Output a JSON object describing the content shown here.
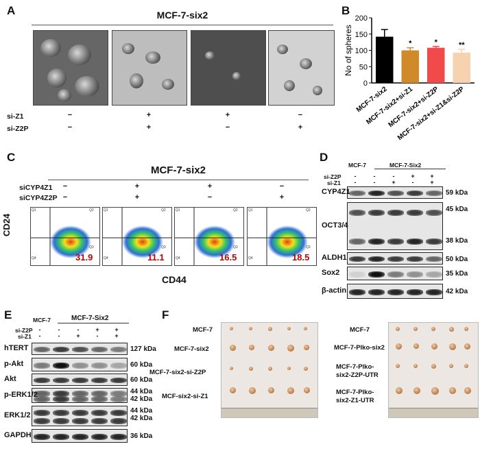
{
  "panelA": {
    "letter": "A",
    "title": "MCF-7-six2",
    "rows": [
      {
        "label": "si-Z1",
        "signs": [
          "−",
          "+",
          "+",
          "−"
        ]
      },
      {
        "label": "si-Z2P",
        "signs": [
          "−",
          "+",
          "−",
          "+"
        ]
      }
    ]
  },
  "panelB": {
    "letter": "B"
  },
  "chart_data": {
    "type": "bar",
    "categories": [
      "MCF-7-six2",
      "MCF-7-six2+si-Z1",
      "MCF-7-six2+si-Z2P",
      "MCF-7-six2+si-Z1&si-Z2P"
    ],
    "values": [
      142,
      100,
      108,
      93
    ],
    "errors": [
      22,
      8,
      4,
      10
    ],
    "significance": [
      "",
      "*",
      "*",
      "**"
    ],
    "colors": [
      "#000000",
      "#d08a2a",
      "#f04a4a",
      "#f7d2b0"
    ],
    "ylabel": "No of spheres",
    "ylim": [
      0,
      200
    ],
    "yticks": [
      0,
      50,
      100,
      150,
      200
    ]
  },
  "panelC": {
    "letter": "C",
    "title": "MCF-7-six2",
    "rows": [
      {
        "label": "siCYP4Z1",
        "signs": [
          "−",
          "+",
          "+",
          "−"
        ]
      },
      {
        "label": "siCYP4Z2P",
        "signs": [
          "−",
          "+",
          "−",
          "+"
        ]
      }
    ],
    "q3_values": [
      "31.9",
      "11.1",
      "16.5",
      "18.5"
    ],
    "xlabel": "CD44",
    "ylabel": "CD24",
    "quad_labels": [
      "Q1",
      "Q2",
      "Q4",
      "Q3"
    ]
  },
  "panelD": {
    "letter": "D",
    "group_left": "MCF-7",
    "group_right": "MCF-7-Six2",
    "rows": [
      {
        "label": "si-Z2P",
        "signs": [
          "-",
          "-",
          "-",
          "+",
          "+"
        ]
      },
      {
        "label": "si-Z1",
        "signs": [
          "-",
          "-",
          "+",
          "-",
          "+"
        ]
      }
    ],
    "blots": [
      {
        "name": "CYP4Z1",
        "kda": [
          "59 kDa"
        ]
      },
      {
        "name": "OCT3/4",
        "kda": [
          "45 kDa",
          "38 kDa"
        ]
      },
      {
        "name": "ALDH1",
        "kda": [
          "50 kDa"
        ]
      },
      {
        "name": "Sox2",
        "kda": [
          "35 kDa"
        ]
      },
      {
        "name": "β-actin",
        "kda": [
          "42 kDa"
        ]
      }
    ]
  },
  "panelE": {
    "letter": "E",
    "group_left": "MCF-7",
    "group_right": "MCF-7-Six2",
    "rows": [
      {
        "label": "si-Z2P",
        "signs": [
          "-",
          "-",
          "-",
          "+",
          "+"
        ]
      },
      {
        "label": "si-Z1",
        "signs": [
          "-",
          "-",
          "+",
          "-",
          "+"
        ]
      }
    ],
    "blots": [
      {
        "name": "hTERT",
        "kda": [
          "127 kDa"
        ]
      },
      {
        "name": "p-Akt",
        "kda": [
          "60 kDa"
        ]
      },
      {
        "name": "Akt",
        "kda": [
          "60 kDa"
        ]
      },
      {
        "name": "p-ERK1/2",
        "kda": [
          "44 kDa",
          "42 kDa"
        ]
      },
      {
        "name": "ERK1/2",
        "kda": [
          "44 kDa",
          "42 kDa"
        ]
      },
      {
        "name": "GAPDH",
        "kda": [
          "36 kDa"
        ]
      }
    ]
  },
  "panelF": {
    "letter": "F",
    "left_labels": [
      "MCF-7",
      "MCF-7-six2",
      "MCF-7-six2-si-Z2P",
      "MCF-six2-si-Z1"
    ],
    "right_labels": [
      "MCF-7",
      "MCF-7-Plko-six2",
      "MCF-7-Plko-\nsix2-Z2P-UTR",
      "MCF-7-Plko-\nsix2-Z1-UTR"
    ]
  }
}
